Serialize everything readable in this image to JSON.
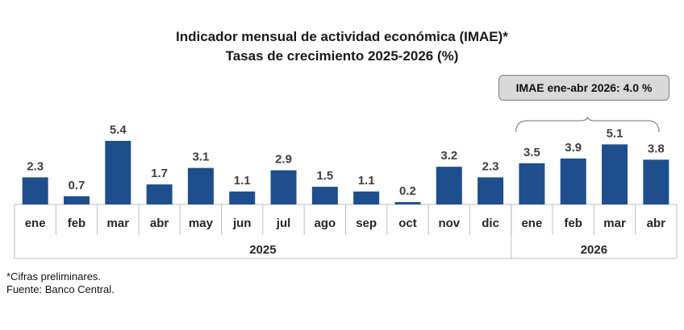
{
  "title_line1": "Indicador mensual de actividad económica (IMAE)*",
  "title_line2": "Tasas de crecimiento 2025-2026 (%)",
  "callout": "IMAE ene-abr 2026: 4.0 %",
  "notes": {
    "preliminary": "*Cifras preliminares.",
    "source": "Fuente: Banco Central."
  },
  "colors": {
    "bar": "#1f4e8c",
    "grid": "#bfbfbf",
    "callout_bg": "#d9d9d9"
  },
  "chart_data": {
    "type": "bar",
    "categories": [
      "ene",
      "feb",
      "mar",
      "abr",
      "may",
      "jun",
      "jul",
      "ago",
      "sep",
      "oct",
      "nov",
      "dic",
      "ene",
      "feb",
      "mar",
      "abr"
    ],
    "values": [
      2.3,
      0.7,
      5.4,
      1.7,
      3.1,
      1.1,
      2.9,
      1.5,
      1.1,
      0.2,
      3.2,
      2.3,
      3.5,
      3.9,
      5.1,
      3.8
    ],
    "value_labels": [
      "2.3",
      "0.7",
      "5.4",
      "1.7",
      "3.1",
      "1.1",
      "2.9",
      "1.5",
      "1.1",
      "0.2",
      "3.2",
      "2.3",
      "3.5",
      "3.9",
      "5.1",
      "3.8"
    ],
    "groups": [
      {
        "label": "2025",
        "count": 12
      },
      {
        "label": "2026",
        "count": 4
      }
    ],
    "ylim": [
      0,
      5.4
    ]
  }
}
